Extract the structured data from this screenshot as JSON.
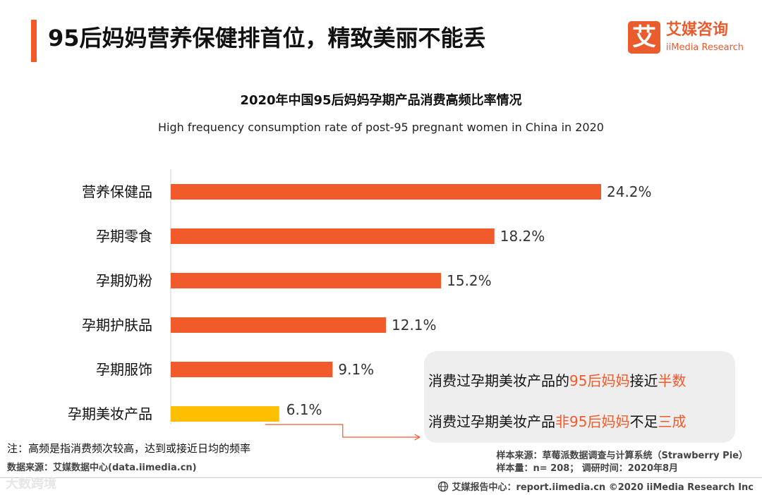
{
  "header": {
    "title": "95后妈妈营养保健排首位，精致美丽不能丢"
  },
  "logo": {
    "mark": "艾",
    "name_cn": "艾媒咨询",
    "name_en": "iiMedia Research"
  },
  "chart_data": {
    "type": "bar",
    "orientation": "horizontal",
    "title": "2020年中国95后妈妈孕期产品消费高频比率情况",
    "subtitle": "High frequency consumption rate of post-95 pregnant women in China in 2020",
    "categories": [
      "营养保健品",
      "孕期零食",
      "孕期奶粉",
      "孕期护肤品",
      "孕期服饰",
      "孕期美妆产品"
    ],
    "values": [
      24.2,
      18.2,
      15.2,
      12.1,
      9.1,
      6.1
    ],
    "labels": [
      "24.2%",
      "18.2%",
      "15.2%",
      "12.1%",
      "9.1%",
      "6.1%"
    ],
    "highlight_index": 5,
    "xlim": [
      0,
      25
    ],
    "grid": false,
    "colors": {
      "bar": "#f15a2b",
      "highlight": "#fdbf00",
      "connector": "#f15a2b"
    }
  },
  "callout": {
    "line1_pre": "消费过孕期美妆产品的",
    "line1_hl1": "95后妈妈",
    "line1_mid": "接近",
    "line1_hl2": "半数",
    "line2_pre": "消费过孕期美妆产品",
    "line2_hl1": "非95后妈妈",
    "line2_mid": "不足",
    "line2_hl2": "三成"
  },
  "notes": {
    "note": "注：高频是指消费频次较高，达到或接近日均的频率",
    "source_left": "数据来源：艾媒数据中心(data.iimedia.cn)",
    "source_right_1": "样本来源：草莓派数据调查与计算系统（Strawberry Pie）",
    "source_right_2": "样本量：n= 208； 调研时间：2020年8月"
  },
  "footer": {
    "text": "艾媒报告中心：report.iimedia.cn  ©2020  iiMedia Research  Inc",
    "watermark": "大数跨境"
  }
}
